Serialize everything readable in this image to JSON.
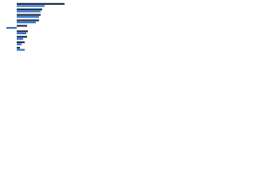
{
  "chart_data": {
    "type": "bar",
    "orientation": "horizontal",
    "categories": [
      null,
      null,
      null,
      null,
      null,
      null,
      null,
      null,
      null
    ],
    "series": [
      {
        "color": "#1b2b45",
        "values": [
          60,
          32,
          30,
          28,
          13,
          14,
          13,
          10,
          4
        ]
      },
      {
        "color": "#2f6fd1",
        "values": [
          35,
          30,
          28,
          24,
          -13,
          12,
          8,
          6,
          10
        ]
      }
    ],
    "xlim": [
      -14,
      60
    ]
  }
}
